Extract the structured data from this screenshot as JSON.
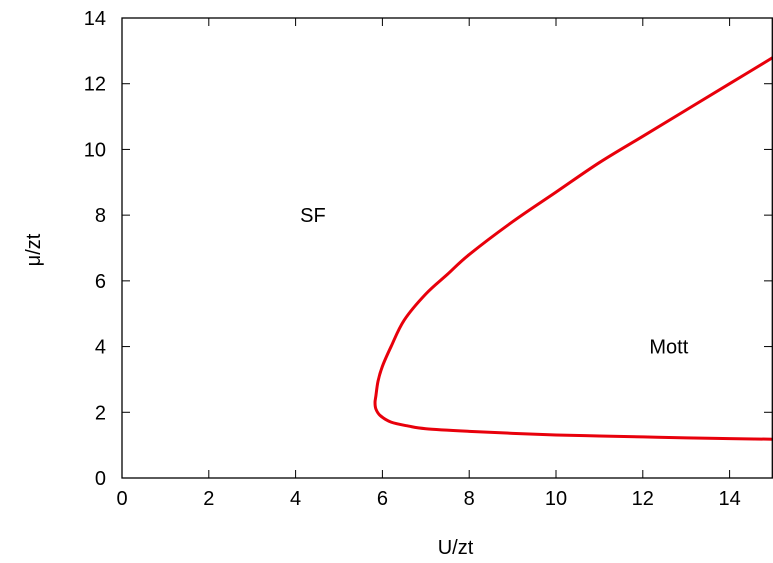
{
  "chart_data": {
    "type": "line",
    "title": "",
    "xlabel": "U/zt",
    "ylabel": "μ/zt",
    "xlim": [
      0,
      15
    ],
    "ylim": [
      0,
      14
    ],
    "xticks": [
      0,
      2,
      4,
      6,
      8,
      10,
      12,
      14
    ],
    "yticks": [
      0,
      2,
      4,
      6,
      8,
      10,
      12,
      14
    ],
    "grid": false,
    "legend": "none",
    "annotations": [
      {
        "text": "SF",
        "x": 4.4,
        "y": 8
      },
      {
        "text": "Mott",
        "x": 12.6,
        "y": 4
      }
    ],
    "series": [
      {
        "color": "#e8000b",
        "points": [
          [
            15.0,
            12.8
          ],
          [
            14.0,
            12.0
          ],
          [
            13.0,
            11.2
          ],
          [
            12.0,
            10.4
          ],
          [
            11.0,
            9.6
          ],
          [
            10.0,
            8.7
          ],
          [
            9.0,
            7.8
          ],
          [
            8.0,
            6.8
          ],
          [
            7.5,
            6.2
          ],
          [
            7.0,
            5.6
          ],
          [
            6.5,
            4.8
          ],
          [
            6.2,
            4.0
          ],
          [
            6.0,
            3.4
          ],
          [
            5.9,
            2.95
          ],
          [
            5.85,
            2.5
          ],
          [
            5.83,
            2.3
          ],
          [
            5.85,
            2.1
          ],
          [
            5.95,
            1.9
          ],
          [
            6.2,
            1.7
          ],
          [
            6.6,
            1.58
          ],
          [
            7.0,
            1.5
          ],
          [
            8.0,
            1.42
          ],
          [
            9.0,
            1.36
          ],
          [
            10.0,
            1.31
          ],
          [
            11.0,
            1.28
          ],
          [
            12.0,
            1.25
          ],
          [
            13.0,
            1.22
          ],
          [
            14.0,
            1.2
          ],
          [
            15.0,
            1.18
          ]
        ]
      }
    ]
  }
}
